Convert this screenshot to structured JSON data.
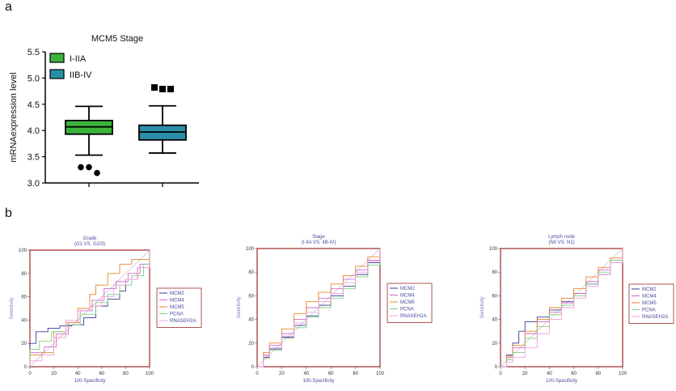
{
  "panels": {
    "a": "a",
    "b": "b"
  },
  "chart_data": [
    {
      "type": "box",
      "title": "MCM5 Stage",
      "ylabel": "mRNAexpression level",
      "ylim": [
        3.0,
        5.5
      ],
      "yticks": [
        "3.0",
        "3.5",
        "4.0",
        "4.5",
        "5.0",
        "5.5"
      ],
      "legend": "top-left",
      "colors": {
        "I-IIA": "#3cb33c",
        "IIB-IV": "#2a8fa6"
      },
      "groups": [
        {
          "name": "I-IIA",
          "whisker_low": 3.53,
          "q1": 3.93,
          "median": 4.07,
          "q3": 4.19,
          "whisker_high": 4.46,
          "outliers": [
            3.3,
            3.3,
            3.19
          ]
        },
        {
          "name": "IIB-IV",
          "whisker_low": 3.57,
          "q1": 3.82,
          "median": 3.97,
          "q3": 4.1,
          "whisker_high": 4.47,
          "outliers": [
            4.82,
            4.79,
            4.79
          ]
        }
      ]
    },
    {
      "type": "line",
      "title": "Grade",
      "subtitle": "(G1 VS. G2/3)",
      "xlabel": "100-Specificity",
      "ylabel": "Sensitivity",
      "xlim": [
        0,
        100
      ],
      "ylim": [
        0,
        100
      ],
      "ticks": [
        "0",
        "20",
        "40",
        "60",
        "80",
        "100"
      ],
      "legend": "right",
      "series": [
        {
          "name": "MCM2",
          "color": "#3a3a9a",
          "points": [
            [
              0,
              0
            ],
            [
              0,
              20
            ],
            [
              5,
              30
            ],
            [
              15,
              33
            ],
            [
              25,
              35
            ],
            [
              35,
              36
            ],
            [
              45,
              42
            ],
            [
              55,
              52
            ],
            [
              65,
              58
            ],
            [
              75,
              65
            ],
            [
              80,
              75
            ],
            [
              90,
              85
            ],
            [
              100,
              88
            ],
            [
              100,
              100
            ]
          ]
        },
        {
          "name": "MCM4",
          "color": "#d06ad0",
          "points": [
            [
              0,
              0
            ],
            [
              0,
              12
            ],
            [
              12,
              17
            ],
            [
              22,
              28
            ],
            [
              32,
              38
            ],
            [
              42,
              48
            ],
            [
              52,
              57
            ],
            [
              62,
              67
            ],
            [
              72,
              73
            ],
            [
              82,
              80
            ],
            [
              92,
              88
            ],
            [
              100,
              97
            ],
            [
              100,
              100
            ]
          ]
        },
        {
          "name": "MCM5",
          "color": "#e8862a",
          "points": [
            [
              0,
              0
            ],
            [
              0,
              10
            ],
            [
              10,
              12
            ],
            [
              20,
              30
            ],
            [
              30,
              38
            ],
            [
              40,
              50
            ],
            [
              50,
              62
            ],
            [
              55,
              70
            ],
            [
              65,
              80
            ],
            [
              75,
              88
            ],
            [
              85,
              92
            ],
            [
              100,
              100
            ]
          ]
        },
        {
          "name": "PCNA",
          "color": "#7fd17f",
          "points": [
            [
              0,
              0
            ],
            [
              0,
              15
            ],
            [
              8,
              22
            ],
            [
              18,
              30
            ],
            [
              30,
              36
            ],
            [
              42,
              45
            ],
            [
              55,
              55
            ],
            [
              65,
              62
            ],
            [
              75,
              70
            ],
            [
              85,
              78
            ],
            [
              95,
              88
            ],
            [
              100,
              100
            ]
          ]
        },
        {
          "name": "RNASEH2A",
          "color": "#f2a0e0",
          "points": [
            [
              0,
              0
            ],
            [
              0,
              5
            ],
            [
              10,
              10
            ],
            [
              20,
              25
            ],
            [
              30,
              40
            ],
            [
              40,
              48
            ],
            [
              50,
              52
            ],
            [
              60,
              60
            ],
            [
              70,
              70
            ],
            [
              80,
              75
            ],
            [
              90,
              85
            ],
            [
              100,
              100
            ]
          ]
        }
      ]
    },
    {
      "type": "line",
      "title": "Stage",
      "subtitle": "(I-IIA VS. IIB-IV)",
      "xlabel": "100-Specificity",
      "ylabel": "Sensitivity",
      "xlim": [
        0,
        100
      ],
      "ylim": [
        0,
        100
      ],
      "ticks": [
        "0",
        "20",
        "40",
        "60",
        "80",
        "100"
      ],
      "legend": "right",
      "series": [
        {
          "name": "MCM2",
          "color": "#3a3a9a",
          "points": [
            [
              0,
              0
            ],
            [
              5,
              8
            ],
            [
              10,
              15
            ],
            [
              20,
              25
            ],
            [
              30,
              35
            ],
            [
              40,
              43
            ],
            [
              50,
              52
            ],
            [
              60,
              60
            ],
            [
              70,
              68
            ],
            [
              80,
              78
            ],
            [
              90,
              88
            ],
            [
              100,
              100
            ]
          ]
        },
        {
          "name": "MCM4",
          "color": "#d06ad0",
          "points": [
            [
              0,
              0
            ],
            [
              5,
              10
            ],
            [
              10,
              18
            ],
            [
              20,
              28
            ],
            [
              30,
              40
            ],
            [
              40,
              50
            ],
            [
              50,
              58
            ],
            [
              60,
              66
            ],
            [
              70,
              74
            ],
            [
              80,
              82
            ],
            [
              90,
              90
            ],
            [
              100,
              100
            ]
          ]
        },
        {
          "name": "MCM5",
          "color": "#e8862a",
          "points": [
            [
              0,
              0
            ],
            [
              5,
              12
            ],
            [
              10,
              20
            ],
            [
              20,
              32
            ],
            [
              30,
              45
            ],
            [
              40,
              55
            ],
            [
              50,
              63
            ],
            [
              60,
              70
            ],
            [
              70,
              77
            ],
            [
              80,
              85
            ],
            [
              90,
              93
            ],
            [
              100,
              100
            ]
          ]
        },
        {
          "name": "PCNA",
          "color": "#7fd17f",
          "points": [
            [
              0,
              0
            ],
            [
              5,
              7
            ],
            [
              10,
              14
            ],
            [
              20,
              24
            ],
            [
              30,
              33
            ],
            [
              40,
              42
            ],
            [
              50,
              50
            ],
            [
              60,
              58
            ],
            [
              70,
              66
            ],
            [
              80,
              76
            ],
            [
              90,
              86
            ],
            [
              100,
              100
            ]
          ]
        },
        {
          "name": "RNASEH2A",
          "color": "#f2a0e0",
          "points": [
            [
              0,
              0
            ],
            [
              5,
              9
            ],
            [
              10,
              16
            ],
            [
              20,
              26
            ],
            [
              30,
              37
            ],
            [
              40,
              46
            ],
            [
              50,
              55
            ],
            [
              60,
              62
            ],
            [
              70,
              71
            ],
            [
              80,
              80
            ],
            [
              90,
              89
            ],
            [
              100,
              100
            ]
          ]
        }
      ]
    },
    {
      "type": "line",
      "title": "Lymph node",
      "subtitle": "(N0 VS. N1)",
      "xlabel": "100-Specificity",
      "ylabel": "Sensitivity",
      "xlim": [
        0,
        100
      ],
      "ylim": [
        0,
        100
      ],
      "ticks": [
        "0",
        "20",
        "40",
        "60",
        "80",
        "100"
      ],
      "legend": "right",
      "series": [
        {
          "name": "MCM2",
          "color": "#3a3a9a",
          "points": [
            [
              0,
              0
            ],
            [
              5,
              10
            ],
            [
              10,
              20
            ],
            [
              15,
              30
            ],
            [
              20,
              38
            ],
            [
              30,
              42
            ],
            [
              40,
              48
            ],
            [
              50,
              55
            ],
            [
              60,
              62
            ],
            [
              70,
              70
            ],
            [
              80,
              78
            ],
            [
              90,
              88
            ],
            [
              100,
              100
            ]
          ]
        },
        {
          "name": "MCM4",
          "color": "#d06ad0",
          "points": [
            [
              0,
              0
            ],
            [
              5,
              8
            ],
            [
              10,
              16
            ],
            [
              20,
              28
            ],
            [
              30,
              38
            ],
            [
              40,
              46
            ],
            [
              50,
              54
            ],
            [
              60,
              62
            ],
            [
              70,
              72
            ],
            [
              80,
              82
            ],
            [
              90,
              90
            ],
            [
              100,
              100
            ]
          ]
        },
        {
          "name": "MCM5",
          "color": "#e8862a",
          "points": [
            [
              0,
              0
            ],
            [
              5,
              9
            ],
            [
              10,
              18
            ],
            [
              20,
              30
            ],
            [
              30,
              40
            ],
            [
              40,
              50
            ],
            [
              50,
              58
            ],
            [
              60,
              66
            ],
            [
              70,
              76
            ],
            [
              80,
              84
            ],
            [
              90,
              92
            ],
            [
              100,
              100
            ]
          ]
        },
        {
          "name": "PCNA",
          "color": "#7fd17f",
          "points": [
            [
              0,
              0
            ],
            [
              5,
              6
            ],
            [
              10,
              12
            ],
            [
              20,
              24
            ],
            [
              30,
              34
            ],
            [
              40,
              44
            ],
            [
              50,
              52
            ],
            [
              60,
              60
            ],
            [
              70,
              70
            ],
            [
              80,
              80
            ],
            [
              90,
              90
            ],
            [
              100,
              100
            ]
          ]
        },
        {
          "name": "RNASEH2A",
          "color": "#f2a0e0",
          "points": [
            [
              0,
              0
            ],
            [
              5,
              4
            ],
            [
              10,
              8
            ],
            [
              20,
              16
            ],
            [
              30,
              28
            ],
            [
              40,
              40
            ],
            [
              50,
              50
            ],
            [
              60,
              58
            ],
            [
              70,
              68
            ],
            [
              80,
              78
            ],
            [
              90,
              88
            ],
            [
              100,
              100
            ]
          ]
        }
      ]
    }
  ]
}
